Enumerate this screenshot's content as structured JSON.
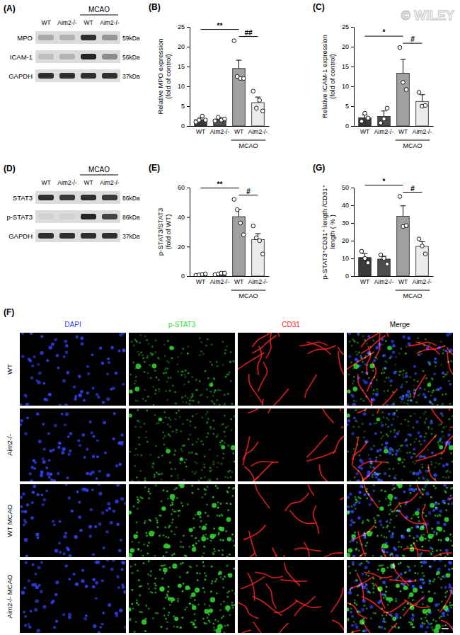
{
  "watermark": "© WILEY",
  "blots": [
    {
      "panel": "(A)",
      "lanes": [
        "WT",
        "Aim2-/-",
        "WT",
        "Aim2-/-"
      ],
      "group": {
        "label": "MCAO",
        "members": [
          2,
          3
        ]
      },
      "rows": [
        {
          "name": "MPO",
          "size": "59kDa",
          "bands": [
            0.25,
            0.2,
            0.85,
            0.35
          ]
        },
        {
          "name": "ICAM-1",
          "size": "56kDa",
          "bands": [
            0.15,
            0.2,
            0.9,
            0.4
          ]
        },
        {
          "name": "GAPDH",
          "size": "37kDa",
          "bands": [
            0.85,
            0.85,
            0.85,
            0.85
          ]
        }
      ]
    },
    {
      "panel": "(D)",
      "lanes": [
        "WT",
        "Aim2-/-",
        "WT",
        "Aim2-/-"
      ],
      "group": {
        "label": "MCAO",
        "members": [
          2,
          3
        ]
      },
      "rows": [
        {
          "name": "STAT3",
          "size": "86kDa",
          "bands": [
            0.85,
            0.8,
            0.85,
            0.8
          ]
        },
        {
          "name": "p-STAT3",
          "size": "86kDa",
          "bands": [
            0.05,
            0.05,
            0.9,
            0.75
          ]
        },
        {
          "name": "GAPDH",
          "size": "37kDa",
          "bands": [
            0.85,
            0.85,
            0.85,
            0.85
          ]
        }
      ]
    }
  ],
  "chart_data": [
    {
      "panel": "(B)",
      "type": "bar",
      "y_label": [
        "Relative MPO expression",
        "(fold of control)"
      ],
      "categories": [
        "WT",
        "Aim2-/-",
        "WT",
        "Aim2-/-"
      ],
      "group": {
        "label": "MCAO",
        "members": [
          2,
          3
        ]
      },
      "values": [
        1.6,
        1.7,
        14.5,
        5.9
      ],
      "errors": [
        0.4,
        0.4,
        2.1,
        1.4
      ],
      "points": [
        [
          1.0,
          1.5,
          2.5,
          1.5
        ],
        [
          1.3,
          2.2,
          1.5,
          1.8
        ],
        [
          21.5,
          12.5,
          12.0,
          12.0
        ],
        [
          8.8,
          4.5,
          6.5,
          3.8
        ]
      ],
      "colors": [
        "#3a3a3a",
        "#4d4d4d",
        "#a0a0a0",
        "#ececec"
      ],
      "ylim": [
        0,
        25
      ],
      "yticks": [
        0,
        5,
        10,
        15,
        20,
        25
      ],
      "annotations": [
        {
          "between": [
            0,
            2
          ],
          "text": "**"
        },
        {
          "between": [
            2,
            3
          ],
          "text": "##"
        }
      ]
    },
    {
      "panel": "(C)",
      "type": "bar",
      "y_label": [
        "Relative ICAM-1 expression",
        "(fold of control)"
      ],
      "categories": [
        "WT",
        "Aim2-/-",
        "WT",
        "Aim2-/-"
      ],
      "group": {
        "label": "MCAO",
        "members": [
          2,
          3
        ]
      },
      "values": [
        2.1,
        2.4,
        13.3,
        6.2
      ],
      "errors": [
        0.7,
        1.4,
        3.5,
        1.7
      ],
      "points": [
        [
          1.2,
          3.2,
          2.0
        ],
        [
          0.8,
          1.8,
          4.5
        ],
        [
          19.8,
          11.0,
          9.2
        ],
        [
          8.5,
          5.0,
          5.2
        ]
      ],
      "colors": [
        "#3a3a3a",
        "#4d4d4d",
        "#a0a0a0",
        "#ececec"
      ],
      "ylim": [
        0,
        25
      ],
      "yticks": [
        0,
        5,
        10,
        15,
        20,
        25
      ],
      "annotations": [
        {
          "between": [
            0,
            2
          ],
          "text": "*"
        },
        {
          "between": [
            2,
            3
          ],
          "text": "#"
        }
      ]
    },
    {
      "panel": "(E)",
      "type": "bar",
      "y_label": [
        "p-STAT3/STAT3",
        "(fold of WT)"
      ],
      "categories": [
        "WT",
        "Aim2-/-",
        "WT",
        "Aim2-/-"
      ],
      "group": {
        "label": "MCAO",
        "members": [
          2,
          3
        ]
      },
      "values": [
        1.0,
        1.6,
        40.3,
        24.8
      ],
      "errors": [
        0.4,
        0.5,
        5.0,
        4.0
      ],
      "points": [
        [
          0.5,
          0.8,
          1.2,
          1.5
        ],
        [
          1.0,
          1.5,
          2.0,
          2.0
        ],
        [
          52,
          45,
          36,
          28
        ],
        [
          34,
          26,
          24,
          15
        ]
      ],
      "colors": [
        "#3a3a3a",
        "#4d4d4d",
        "#a0a0a0",
        "#ececec"
      ],
      "ylim": [
        0,
        60
      ],
      "yticks": [
        0,
        20,
        40,
        60
      ],
      "annotations": [
        {
          "between": [
            0,
            2
          ],
          "text": "**"
        },
        {
          "between": [
            2,
            3
          ],
          "text": "#"
        }
      ]
    },
    {
      "panel": "(G)",
      "type": "bar",
      "y_label": [
        "p-STAT3⁺CD31⁺ length /CD31⁺",
        "length ( % )"
      ],
      "categories": [
        "WT",
        "Aim2-/-",
        "WT",
        "Aim2-/-"
      ],
      "group": {
        "label": "MCAO",
        "members": [
          2,
          3
        ]
      },
      "values": [
        10.5,
        9.6,
        33.8,
        16.8
      ],
      "errors": [
        2.2,
        1.6,
        5.9,
        2.6
      ],
      "points": [
        [
          14,
          10,
          7.5
        ],
        [
          12,
          10,
          6.8
        ],
        [
          45,
          28,
          28.5
        ],
        [
          21,
          17,
          12.5
        ]
      ],
      "colors": [
        "#3a3a3a",
        "#4d4d4d",
        "#a0a0a0",
        "#ececec"
      ],
      "ylim": [
        0,
        50
      ],
      "yticks": [
        0,
        10,
        20,
        30,
        40,
        50
      ],
      "annotations": [
        {
          "between": [
            0,
            2
          ],
          "text": "*"
        },
        {
          "between": [
            2,
            3
          ],
          "text": "#"
        }
      ]
    }
  ],
  "micrographs": {
    "panel": "(F)",
    "channels": [
      "DAPI",
      "p-STAT3",
      "CD31",
      "Merge"
    ],
    "channel_colors": [
      "#3344ff",
      "#33dd33",
      "#ff2222"
    ],
    "conditions": [
      "WT",
      "Aim2-/-",
      "WT MCAO",
      "Aim2-/- MCAO"
    ]
  }
}
